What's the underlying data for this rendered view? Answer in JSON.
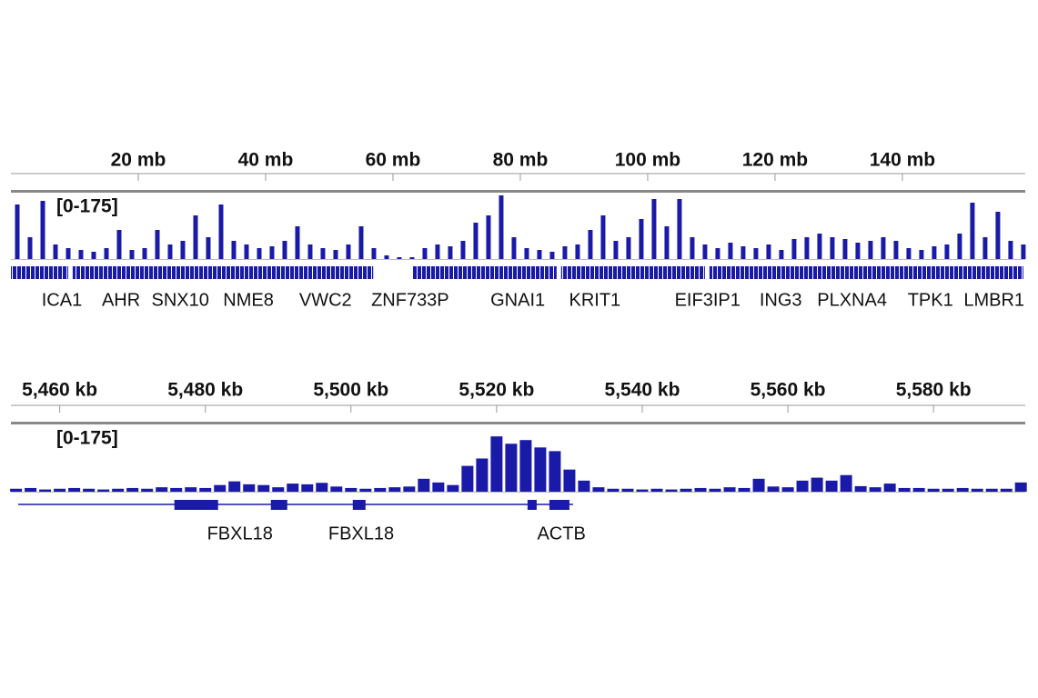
{
  "chart_data": [
    {
      "type": "coverage",
      "range_label": "[0-175]",
      "color": "#1a1aa8",
      "xlim": [
        0,
        159.3
      ],
      "ylim": [
        0,
        175
      ],
      "xticks": [
        {
          "value": 20,
          "label": "20 mb"
        },
        {
          "value": 40,
          "label": "40 mb"
        },
        {
          "value": 60,
          "label": "60 mb"
        },
        {
          "value": 80,
          "label": "80 mb"
        },
        {
          "value": 100,
          "label": "100 mb"
        },
        {
          "value": 120,
          "label": "120 mb"
        },
        {
          "value": 140,
          "label": "140 mb"
        }
      ],
      "x": [
        1,
        3,
        5,
        7,
        9,
        11,
        13,
        15,
        17,
        19,
        21,
        23,
        25,
        27,
        29,
        31,
        33,
        35,
        37,
        39,
        41,
        43,
        45,
        47,
        49,
        51,
        53,
        55,
        57,
        59,
        61,
        63,
        65,
        67,
        69,
        71,
        73,
        75,
        77,
        79,
        81,
        83,
        85,
        87,
        89,
        91,
        93,
        95,
        97,
        99,
        101,
        103,
        105,
        107,
        109,
        111,
        113,
        115,
        117,
        119,
        121,
        123,
        125,
        127,
        129,
        131,
        133,
        135,
        137,
        139,
        141,
        143,
        145,
        147,
        149,
        151,
        153,
        155,
        157,
        159
      ],
      "values": [
        150,
        60,
        160,
        40,
        30,
        25,
        20,
        30,
        80,
        25,
        30,
        80,
        40,
        50,
        120,
        60,
        150,
        50,
        40,
        30,
        35,
        50,
        90,
        40,
        30,
        25,
        40,
        90,
        30,
        10,
        5,
        5,
        30,
        40,
        35,
        50,
        100,
        120,
        175,
        60,
        30,
        25,
        20,
        35,
        40,
        80,
        120,
        50,
        60,
        110,
        165,
        90,
        165,
        60,
        40,
        30,
        45,
        35,
        30,
        40,
        25,
        55,
        60,
        70,
        60,
        55,
        45,
        50,
        60,
        50,
        30,
        25,
        35,
        40,
        70,
        155,
        60,
        130,
        50,
        40
      ],
      "features": [
        [
          0,
          9
        ],
        [
          9.7,
          56.9
        ],
        [
          63,
          85.7
        ],
        [
          86.4,
          109
        ],
        [
          109.7,
          159
        ]
      ],
      "genes": [
        {
          "name": "ICA1",
          "position": 8
        },
        {
          "name": "AHR",
          "position": 17.3
        },
        {
          "name": "SNX10",
          "position": 26.6
        },
        {
          "name": "NME8",
          "position": 37.3
        },
        {
          "name": "VWC2",
          "position": 49.4
        },
        {
          "name": "ZNF733P",
          "position": 62.7
        },
        {
          "name": "GNAI1",
          "position": 79.6
        },
        {
          "name": "KRIT1",
          "position": 91.7
        },
        {
          "name": "EIF3IP1",
          "position": 109.4
        },
        {
          "name": "ING3",
          "position": 120.9
        },
        {
          "name": "PLXNA4",
          "position": 132.1
        },
        {
          "name": "TPK1",
          "position": 144.4
        },
        {
          "name": "LMBR1",
          "position": 154.4
        }
      ]
    },
    {
      "type": "coverage",
      "range_label": "[0-175]",
      "color": "#1a1aa8",
      "xlim": [
        5453.3,
        5592.6
      ],
      "ylim": [
        0,
        175
      ],
      "xticks": [
        {
          "value": 5460,
          "label": "5,460 kb"
        },
        {
          "value": 5480,
          "label": "5,480 kb"
        },
        {
          "value": 5500,
          "label": "5,500 kb"
        },
        {
          "value": 5520,
          "label": "5,520 kb"
        },
        {
          "value": 5540,
          "label": "5,540 kb"
        },
        {
          "value": 5560,
          "label": "5,560 kb"
        },
        {
          "value": 5580,
          "label": "5,580 kb"
        }
      ],
      "x": [
        5454,
        5456,
        5458,
        5460,
        5462,
        5464,
        5466,
        5468,
        5470,
        5472,
        5474,
        5476,
        5478,
        5480,
        5482,
        5484,
        5486,
        5488,
        5490,
        5492,
        5494,
        5496,
        5498,
        5500,
        5502,
        5504,
        5506,
        5508,
        5510,
        5512,
        5514,
        5516,
        5518,
        5520,
        5522,
        5524,
        5526,
        5528,
        5530,
        5532,
        5534,
        5536,
        5538,
        5540,
        5542,
        5544,
        5546,
        5548,
        5550,
        5552,
        5554,
        5556,
        5558,
        5560,
        5562,
        5564,
        5566,
        5568,
        5570,
        5572,
        5574,
        5576,
        5578,
        5580,
        5582,
        5584,
        5586,
        5588,
        5590,
        5592
      ],
      "values": [
        8,
        10,
        6,
        8,
        10,
        8,
        6,
        8,
        10,
        8,
        12,
        10,
        12,
        10,
        18,
        28,
        20,
        18,
        12,
        22,
        20,
        24,
        14,
        10,
        8,
        10,
        12,
        14,
        35,
        25,
        18,
        70,
        90,
        150,
        130,
        140,
        120,
        110,
        60,
        30,
        12,
        8,
        8,
        6,
        8,
        6,
        8,
        10,
        8,
        12,
        10,
        35,
        14,
        12,
        30,
        38,
        30,
        45,
        15,
        12,
        22,
        10,
        10,
        8,
        8,
        10,
        8,
        8,
        8,
        25
      ],
      "intron_span": [
        5454.3,
        5530.5
      ],
      "features": [
        [
          5475.75,
          5481.75
        ],
        [
          5489,
          5491.25
        ],
        [
          5500.25,
          5502
        ],
        [
          5524.25,
          5525.5
        ],
        [
          5527.25,
          5530
        ]
      ],
      "genes": [
        {
          "name": "FBXL18",
          "position": 5484.75
        },
        {
          "name": "FBXL18",
          "position": 5501.4
        },
        {
          "name": "ACTB",
          "position": 5528.9
        }
      ]
    }
  ]
}
